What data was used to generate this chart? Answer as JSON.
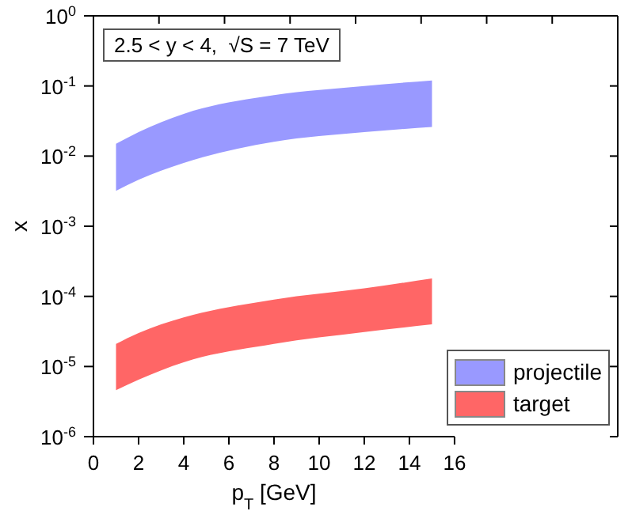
{
  "chart_data": {
    "type": "area",
    "xlabel": "p$_{T}$ [GeV]",
    "ylabel": "x",
    "annotations": [
      "2.5 < y < 4,  √S = 7 TeV"
    ],
    "x": [
      1,
      2,
      4,
      8,
      12,
      15
    ],
    "series": [
      {
        "name": "projectile",
        "color": "#9999ff",
        "values": [
          null,
          null,
          null,
          null,
          null,
          null
        ],
        "lower": [
          0.0032,
          0.0046,
          0.008,
          0.016,
          0.022,
          0.026
        ],
        "upper": [
          0.015,
          0.022,
          0.04,
          0.074,
          0.1,
          0.12
        ]
      },
      {
        "name": "target",
        "color": "#ff6666",
        "values": [
          null,
          null,
          null,
          null,
          null,
          null
        ],
        "lower": [
          4.6e-06,
          6.5e-06,
          1.15e-05,
          2.1e-05,
          3.1e-05,
          4e-05
        ],
        "upper": [
          2.1e-05,
          3e-05,
          5e-05,
          9e-05,
          0.00013,
          0.00018
        ]
      }
    ],
    "log": "y",
    "xlim": [
      0,
      16
    ],
    "xticks": [
      0,
      2,
      4,
      6,
      8,
      10,
      12,
      14,
      16
    ],
    "ylim": [
      1e-06,
      1
    ],
    "yticks": [
      {
        "value": 1e-06,
        "label": "10$^{-6}$"
      },
      {
        "value": 1e-05,
        "label": "10$^{-5}$"
      },
      {
        "value": 0.0001,
        "label": "10$^{-4}$"
      },
      {
        "value": 0.001,
        "label": "10$^{-3}$"
      },
      {
        "value": 0.01,
        "label": "10$^{-2}$"
      },
      {
        "value": 0.1,
        "label": "10$^{-1}$"
      },
      {
        "value": 1,
        "label": "10$^{0}$"
      }
    ],
    "grid": false,
    "legend": "bottom right"
  }
}
